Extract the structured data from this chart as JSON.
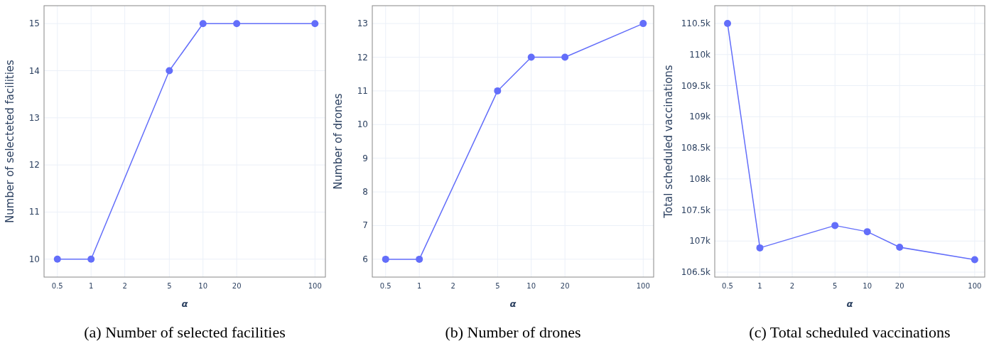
{
  "chart_data": [
    {
      "type": "line",
      "title": "(a) Number of selected facilities",
      "xlabel": "α",
      "ylabel": "Number of selecteted facilities",
      "log": "x",
      "x": [
        0.5,
        1,
        5,
        10,
        20,
        100
      ],
      "series": [
        {
          "color": "#636efa",
          "values": [
            10,
            10,
            14,
            15,
            15,
            15
          ]
        }
      ],
      "xlim": [
        0.38,
        124
      ],
      "xticks": [
        0.5,
        1,
        2,
        5,
        10,
        20,
        100
      ],
      "ylim": [
        9.62,
        15.38
      ],
      "yticks": [
        10,
        11,
        12,
        13,
        14,
        15
      ],
      "grid": true,
      "marker": "circle"
    },
    {
      "type": "line",
      "title": "(b) Number of drones",
      "xlabel": "α",
      "ylabel": "Number of drones",
      "log": "x",
      "x": [
        0.5,
        1,
        5,
        10,
        20,
        100
      ],
      "series": [
        {
          "color": "#636efa",
          "values": [
            6,
            6,
            11,
            12,
            12,
            13
          ]
        }
      ],
      "xlim": [
        0.38,
        124
      ],
      "xticks": [
        0.5,
        1,
        2,
        5,
        10,
        20,
        100
      ],
      "ylim": [
        5.47,
        13.53
      ],
      "yticks": [
        6,
        7,
        8,
        9,
        10,
        11,
        12,
        13
      ],
      "grid": true,
      "marker": "circle"
    },
    {
      "type": "line",
      "title": "(c) Total scheduled vaccinations",
      "xlabel": "α",
      "ylabel": "Total scheduled vaccinations",
      "log": "x",
      "x": [
        0.5,
        1,
        5,
        10,
        20,
        100
      ],
      "series": [
        {
          "color": "#636efa",
          "values": [
            110500,
            106890,
            107250,
            107150,
            106900,
            106700
          ]
        }
      ],
      "xlim": [
        0.38,
        124
      ],
      "xticks": [
        0.5,
        1,
        2,
        5,
        10,
        20,
        100
      ],
      "ylim": [
        106420,
        110786
      ],
      "yticks": [
        {
          "value": 106500,
          "label": "106.5k"
        },
        {
          "value": 107000,
          "label": "107k"
        },
        {
          "value": 107500,
          "label": "107.5k"
        },
        {
          "value": 108000,
          "label": "108k"
        },
        {
          "value": 108500,
          "label": "108.5k"
        },
        {
          "value": 109000,
          "label": "109k"
        },
        {
          "value": 109500,
          "label": "109.5k"
        },
        {
          "value": 110000,
          "label": "110k"
        },
        {
          "value": 110500,
          "label": "110.5k"
        }
      ],
      "grid": true,
      "marker": "circle"
    }
  ]
}
